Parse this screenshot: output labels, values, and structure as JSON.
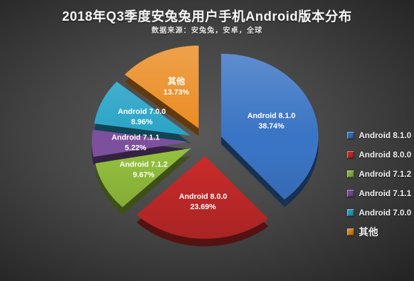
{
  "chart_data": {
    "type": "pie",
    "title": "2018年Q3季度安兔兔用户手机Android版本分布",
    "subtitle": "数据来源：安兔兔，安卓，全球",
    "unit": "%",
    "style": "3d-exploded",
    "legend_position": "right",
    "background": "#474747",
    "slices": [
      {
        "label": "Android 8.1.0",
        "value": 38.74,
        "color": "#3a74c4"
      },
      {
        "label": "Android 8.0.0",
        "value": 23.69,
        "color": "#cb2b2b"
      },
      {
        "label": "Android 7.1.2",
        "value": 9.67,
        "color": "#93bf3d"
      },
      {
        "label": "Android 7.1.1",
        "value": 5.22,
        "color": "#7d509e"
      },
      {
        "label": "Android 7.0.0",
        "value": 8.96,
        "color": "#2aa4c6"
      },
      {
        "label": "其他",
        "value": 13.73,
        "color": "#ea8a1f"
      }
    ]
  }
}
